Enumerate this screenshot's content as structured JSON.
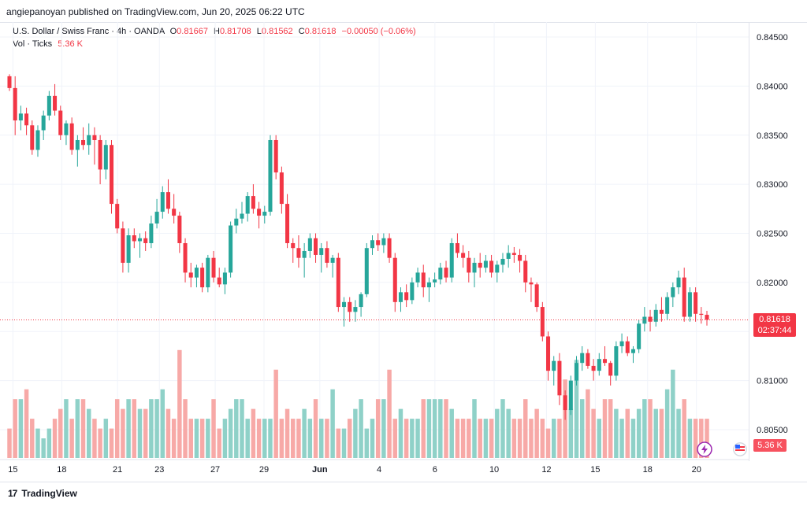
{
  "header": {
    "published": "angiepanoyan published on TradingView.com, Jun 20, 2025 06:22 UTC"
  },
  "legend": {
    "symbol": "U.S. Dollar / Swiss Franc · 4h · OANDA",
    "o_label": "O",
    "o_value": "0.81667",
    "h_label": "H",
    "h_value": "0.81708",
    "l_label": "L",
    "l_value": "0.81562",
    "c_label": "C",
    "c_value": "0.81618",
    "change": "−0.00050 (−0.06%)",
    "vol_label": "Vol · Ticks",
    "vol_value": "5.36 K"
  },
  "price_tag": {
    "price": "0.81618",
    "countdown": "02:37:44"
  },
  "volume_tag": "5.36 K",
  "footer": {
    "brand": "TradingView"
  },
  "colors": {
    "up": "#26a69a",
    "down": "#f23645",
    "vol_up": "#8fd1c8",
    "vol_down": "#f7a9a7",
    "grid": "#f0f3fa"
  },
  "chart_data": {
    "type": "candlestick",
    "y_ticks": [
      "0.84500",
      "0.84000",
      "0.83500",
      "0.83000",
      "0.82500",
      "0.82000",
      "0.81500",
      "0.81000",
      "0.80500"
    ],
    "ylim": [
      0.8015,
      0.8475
    ],
    "x_ticks": [
      "15",
      "18",
      "21",
      "23",
      "27",
      "29",
      "Jun",
      "4",
      "6",
      "10",
      "12",
      "15",
      "18",
      "20"
    ],
    "current_price": 0.81618,
    "candles": [
      [
        0.841,
        0.8412,
        0.8395,
        0.8398
      ],
      [
        0.8398,
        0.841,
        0.835,
        0.8365
      ],
      [
        0.8365,
        0.838,
        0.8355,
        0.8372
      ],
      [
        0.8372,
        0.8378,
        0.835,
        0.836
      ],
      [
        0.836,
        0.8365,
        0.833,
        0.8335
      ],
      [
        0.8335,
        0.836,
        0.8328,
        0.8355
      ],
      [
        0.8355,
        0.8375,
        0.8345,
        0.837
      ],
      [
        0.837,
        0.8395,
        0.8365,
        0.839
      ],
      [
        0.839,
        0.8402,
        0.837,
        0.8375
      ],
      [
        0.8375,
        0.838,
        0.8345,
        0.835
      ],
      [
        0.835,
        0.8365,
        0.834,
        0.8362
      ],
      [
        0.8362,
        0.8368,
        0.833,
        0.8335
      ],
      [
        0.8335,
        0.835,
        0.8318,
        0.8345
      ],
      [
        0.8345,
        0.8358,
        0.8335,
        0.834
      ],
      [
        0.834,
        0.8362,
        0.833,
        0.835
      ],
      [
        0.835,
        0.8358,
        0.832,
        0.8345
      ],
      [
        0.8345,
        0.835,
        0.83,
        0.8315
      ],
      [
        0.8315,
        0.8345,
        0.8305,
        0.834
      ],
      [
        0.834,
        0.8345,
        0.827,
        0.828
      ],
      [
        0.828,
        0.8285,
        0.825,
        0.8255
      ],
      [
        0.8255,
        0.8262,
        0.821,
        0.822
      ],
      [
        0.822,
        0.8255,
        0.821,
        0.8248
      ],
      [
        0.8248,
        0.8255,
        0.8235,
        0.8242
      ],
      [
        0.8242,
        0.825,
        0.8225,
        0.8245
      ],
      [
        0.8245,
        0.8252,
        0.8232,
        0.824
      ],
      [
        0.824,
        0.8268,
        0.8235,
        0.826
      ],
      [
        0.826,
        0.8285,
        0.8255,
        0.8272
      ],
      [
        0.8272,
        0.8298,
        0.8265,
        0.8292
      ],
      [
        0.8292,
        0.8305,
        0.827,
        0.8275
      ],
      [
        0.8275,
        0.829,
        0.826,
        0.8268
      ],
      [
        0.8268,
        0.8272,
        0.823,
        0.824
      ],
      [
        0.824,
        0.8245,
        0.82,
        0.821
      ],
      [
        0.821,
        0.822,
        0.8195,
        0.8205
      ],
      [
        0.8205,
        0.8218,
        0.8195,
        0.8215
      ],
      [
        0.8215,
        0.822,
        0.819,
        0.8195
      ],
      [
        0.8195,
        0.8228,
        0.819,
        0.8225
      ],
      [
        0.8225,
        0.8232,
        0.82,
        0.8205
      ],
      [
        0.8205,
        0.8215,
        0.8195,
        0.8198
      ],
      [
        0.8198,
        0.8215,
        0.8188,
        0.821
      ],
      [
        0.821,
        0.8262,
        0.8205,
        0.8258
      ],
      [
        0.8258,
        0.8275,
        0.825,
        0.8265
      ],
      [
        0.8265,
        0.8282,
        0.826,
        0.827
      ],
      [
        0.827,
        0.8292,
        0.8262,
        0.8288
      ],
      [
        0.8288,
        0.83,
        0.827,
        0.8275
      ],
      [
        0.8275,
        0.8282,
        0.8255,
        0.8268
      ],
      [
        0.8268,
        0.8278,
        0.826,
        0.8272
      ],
      [
        0.8272,
        0.835,
        0.8268,
        0.8345
      ],
      [
        0.8345,
        0.835,
        0.8305,
        0.8312
      ],
      [
        0.8312,
        0.8318,
        0.827,
        0.828
      ],
      [
        0.828,
        0.829,
        0.8235,
        0.824
      ],
      [
        0.824,
        0.8245,
        0.822,
        0.8235
      ],
      [
        0.8235,
        0.8248,
        0.8215,
        0.8225
      ],
      [
        0.8225,
        0.824,
        0.8205,
        0.8232
      ],
      [
        0.8232,
        0.825,
        0.8225,
        0.8245
      ],
      [
        0.8245,
        0.825,
        0.822,
        0.8228
      ],
      [
        0.8228,
        0.824,
        0.821,
        0.8235
      ],
      [
        0.8235,
        0.8242,
        0.8215,
        0.822
      ],
      [
        0.822,
        0.8228,
        0.8205,
        0.8225
      ],
      [
        0.8225,
        0.823,
        0.817,
        0.8175
      ],
      [
        0.8175,
        0.8185,
        0.8155,
        0.818
      ],
      [
        0.818,
        0.8185,
        0.816,
        0.817
      ],
      [
        0.817,
        0.8182,
        0.816,
        0.8175
      ],
      [
        0.8175,
        0.819,
        0.8165,
        0.8188
      ],
      [
        0.8188,
        0.824,
        0.8185,
        0.8235
      ],
      [
        0.8235,
        0.8248,
        0.8228,
        0.8243
      ],
      [
        0.8243,
        0.825,
        0.8232,
        0.8238
      ],
      [
        0.8238,
        0.825,
        0.823,
        0.8245
      ],
      [
        0.8245,
        0.825,
        0.822,
        0.8225
      ],
      [
        0.8225,
        0.823,
        0.817,
        0.818
      ],
      [
        0.818,
        0.8195,
        0.817,
        0.819
      ],
      [
        0.819,
        0.8198,
        0.8175,
        0.8182
      ],
      [
        0.8182,
        0.8205,
        0.8178,
        0.82
      ],
      [
        0.82,
        0.8215,
        0.8195,
        0.821
      ],
      [
        0.821,
        0.8218,
        0.8185,
        0.8195
      ],
      [
        0.8195,
        0.8205,
        0.818,
        0.82
      ],
      [
        0.82,
        0.821,
        0.8195,
        0.8203
      ],
      [
        0.8203,
        0.822,
        0.8198,
        0.8215
      ],
      [
        0.8215,
        0.8222,
        0.82,
        0.8205
      ],
      [
        0.8205,
        0.8245,
        0.82,
        0.824
      ],
      [
        0.824,
        0.825,
        0.8225,
        0.823
      ],
      [
        0.823,
        0.8238,
        0.8215,
        0.8225
      ],
      [
        0.8225,
        0.8232,
        0.82,
        0.821
      ],
      [
        0.821,
        0.8225,
        0.8195,
        0.822
      ],
      [
        0.822,
        0.823,
        0.8205,
        0.8215
      ],
      [
        0.8215,
        0.8228,
        0.821,
        0.8222
      ],
      [
        0.8222,
        0.8228,
        0.8205,
        0.821
      ],
      [
        0.821,
        0.8222,
        0.82,
        0.8218
      ],
      [
        0.8218,
        0.823,
        0.821,
        0.8224
      ],
      [
        0.8224,
        0.8238,
        0.8215,
        0.823
      ],
      [
        0.823,
        0.8236,
        0.822,
        0.8228
      ],
      [
        0.8228,
        0.8234,
        0.821,
        0.8222
      ],
      [
        0.8222,
        0.8228,
        0.819,
        0.82
      ],
      [
        0.82,
        0.8205,
        0.818,
        0.8198
      ],
      [
        0.8198,
        0.82,
        0.817,
        0.8175
      ],
      [
        0.8175,
        0.818,
        0.814,
        0.8145
      ],
      [
        0.8145,
        0.815,
        0.81,
        0.811
      ],
      [
        0.811,
        0.8125,
        0.8095,
        0.812
      ],
      [
        0.812,
        0.8128,
        0.8075,
        0.8085
      ],
      [
        0.8085,
        0.809,
        0.806,
        0.807
      ],
      [
        0.807,
        0.8105,
        0.8065,
        0.81
      ],
      [
        0.81,
        0.8125,
        0.8095,
        0.8118
      ],
      [
        0.8118,
        0.8135,
        0.811,
        0.8128
      ],
      [
        0.8128,
        0.8132,
        0.8112,
        0.8115
      ],
      [
        0.8115,
        0.8122,
        0.81,
        0.811
      ],
      [
        0.811,
        0.8128,
        0.8105,
        0.8122
      ],
      [
        0.8122,
        0.8135,
        0.8115,
        0.8118
      ],
      [
        0.8118,
        0.812,
        0.8095,
        0.8105
      ],
      [
        0.8105,
        0.814,
        0.81,
        0.8135
      ],
      [
        0.8135,
        0.8148,
        0.8128,
        0.814
      ],
      [
        0.814,
        0.8145,
        0.8125,
        0.8128
      ],
      [
        0.8128,
        0.8135,
        0.8118,
        0.8132
      ],
      [
        0.8132,
        0.8162,
        0.8128,
        0.8158
      ],
      [
        0.8158,
        0.8175,
        0.815,
        0.8165
      ],
      [
        0.8165,
        0.8172,
        0.815,
        0.816
      ],
      [
        0.816,
        0.8178,
        0.8155,
        0.8172
      ],
      [
        0.8172,
        0.8185,
        0.816,
        0.8168
      ],
      [
        0.8168,
        0.819,
        0.8162,
        0.8185
      ],
      [
        0.8185,
        0.82,
        0.8175,
        0.8195
      ],
      [
        0.8195,
        0.8212,
        0.8188,
        0.8205
      ],
      [
        0.8205,
        0.8215,
        0.816,
        0.8165
      ],
      [
        0.8165,
        0.8195,
        0.816,
        0.819
      ],
      [
        0.819,
        0.8195,
        0.816,
        0.8168
      ],
      [
        0.8168,
        0.8175,
        0.8158,
        0.8167
      ],
      [
        0.8167,
        0.8171,
        0.8156,
        0.8162
      ]
    ],
    "volumes": [
      30,
      60,
      60,
      70,
      40,
      30,
      20,
      30,
      40,
      50,
      60,
      40,
      60,
      60,
      50,
      40,
      30,
      40,
      30,
      60,
      50,
      60,
      60,
      50,
      50,
      60,
      60,
      70,
      50,
      40,
      110,
      60,
      40,
      40,
      40,
      40,
      60,
      30,
      40,
      50,
      60,
      60,
      40,
      50,
      40,
      40,
      40,
      90,
      40,
      50,
      40,
      40,
      50,
      40,
      60,
      40,
      40,
      70,
      30,
      30,
      40,
      50,
      60,
      30,
      40,
      60,
      60,
      90,
      40,
      50,
      40,
      40,
      40,
      60,
      60,
      60,
      60,
      60,
      50,
      40,
      40,
      40,
      60,
      40,
      40,
      40,
      50,
      60,
      50,
      40,
      40,
      60,
      40,
      50,
      40,
      30,
      40,
      40,
      80,
      50,
      100,
      60,
      70,
      50,
      40,
      60,
      60,
      50,
      40,
      50,
      40,
      50,
      60,
      60,
      50,
      50,
      70,
      90,
      50,
      60,
      40,
      40,
      40,
      40,
      40
    ]
  }
}
